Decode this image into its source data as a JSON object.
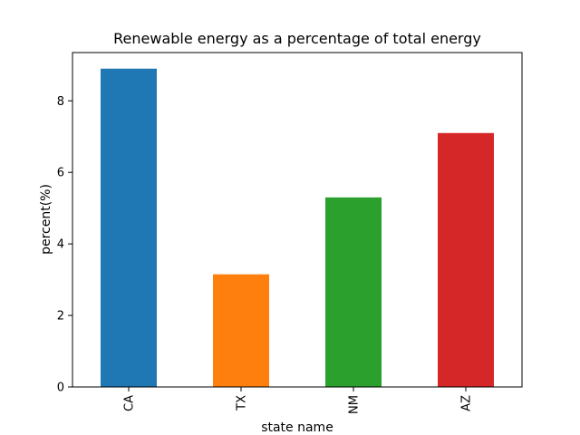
{
  "chart_data": {
    "type": "bar",
    "title": "Renewable energy as a percentage of total energy",
    "xlabel": "state name",
    "ylabel": "percent(%)",
    "categories": [
      "CA",
      "TX",
      "NM",
      "AZ"
    ],
    "values": [
      8.9,
      3.15,
      5.3,
      7.1
    ],
    "colors": [
      "#1f77b4",
      "#ff7f0e",
      "#2ca02c",
      "#d62728"
    ],
    "ylim": [
      0,
      9.35
    ],
    "yticks": [
      0,
      2,
      4,
      6,
      8
    ],
    "ytick_labels": [
      "0",
      "2",
      "4",
      "6",
      "8"
    ],
    "grid": false,
    "legend": false
  }
}
